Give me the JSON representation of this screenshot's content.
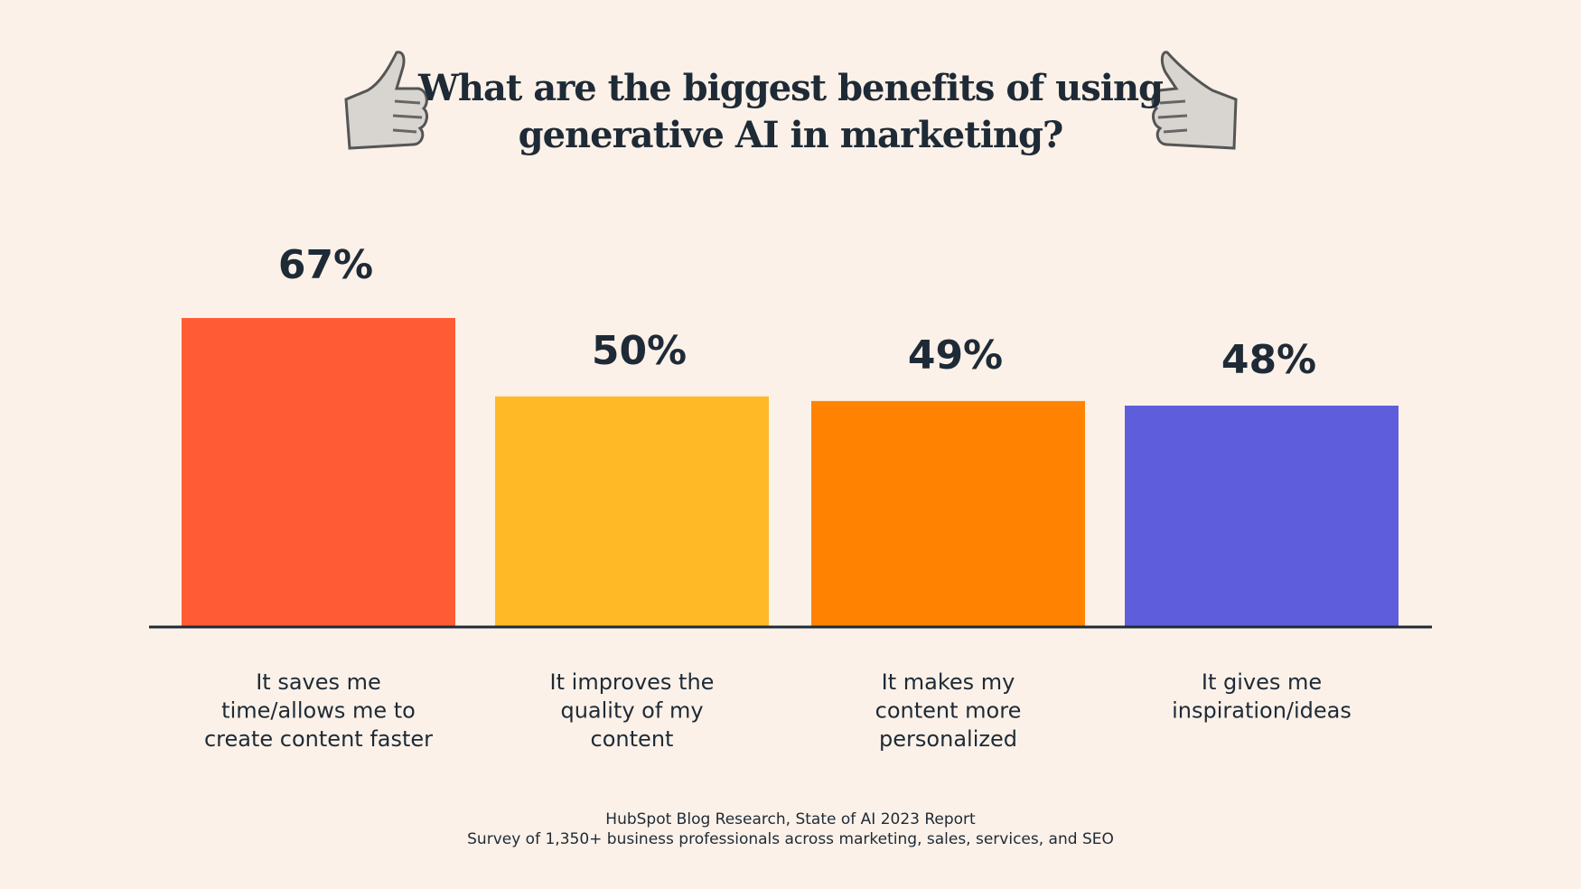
{
  "chart_data": {
    "type": "bar",
    "title": "What are the biggest benefits of using generative AI in marketing?",
    "title_lines": [
      "What are the biggest benefits of using",
      "generative AI in marketing?"
    ],
    "categories": [
      [
        "It saves me",
        "time/allows me to",
        "create content faster"
      ],
      [
        "It improves the",
        "quality of my",
        "content"
      ],
      [
        "It makes my",
        "content more",
        "personalized"
      ],
      [
        "It gives me",
        "inspiration/ideas"
      ]
    ],
    "values": [
      67,
      50,
      49,
      48
    ],
    "data_labels": [
      "67%",
      "50%",
      "49%",
      "48%"
    ],
    "colors": [
      "#ff5c35",
      "#ffb927",
      "#ff8300",
      "#5e5edc"
    ],
    "unit": "%",
    "ylim": [
      0,
      67
    ],
    "grid": false,
    "legend": "none"
  },
  "decorations": {
    "left_icon": "thumbs-up-icon",
    "right_icon": "thumbs-up-icon"
  },
  "footer": {
    "source": "HubSpot Blog Research, State of AI 2023 Report",
    "note": "Survey of 1,350+ business professionals across marketing, sales, services, and SEO"
  }
}
